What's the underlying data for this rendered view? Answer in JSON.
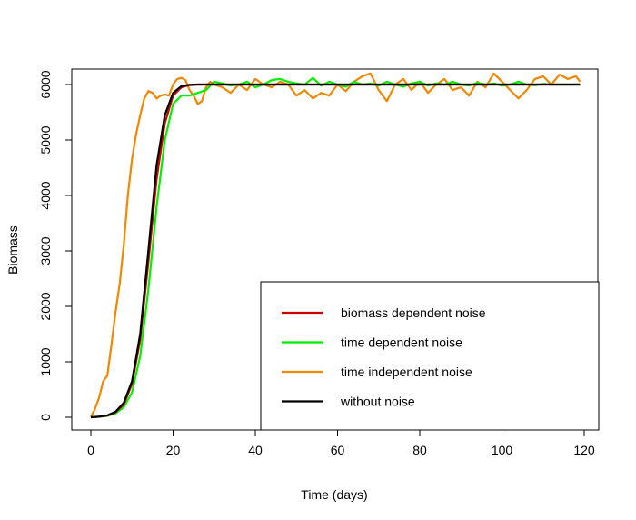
{
  "chart_data": {
    "type": "line",
    "title": "",
    "xlabel": "Time (days)",
    "ylabel": "Biomass",
    "xlim": [
      0,
      120
    ],
    "ylim": [
      0,
      6000
    ],
    "x_ticks": [
      0,
      20,
      40,
      60,
      80,
      100,
      120
    ],
    "y_ticks": [
      0,
      1000,
      2000,
      3000,
      4000,
      5000,
      6000
    ],
    "grid": false,
    "legend_position": "bottom-right",
    "series": [
      {
        "name": "biomass dependent noise",
        "color": "#cc0000",
        "x": [
          0,
          2,
          4,
          6,
          8,
          10,
          12,
          14,
          16,
          18,
          20,
          22,
          24,
          26,
          28,
          30,
          35,
          40,
          50,
          60,
          70,
          80,
          90,
          100,
          110,
          119
        ],
        "y": [
          0,
          10,
          30,
          90,
          230,
          600,
          1400,
          2800,
          4300,
          5300,
          5800,
          5950,
          5990,
          6000,
          6000,
          6000,
          6000,
          6000,
          6000,
          6000,
          6000,
          6000,
          6000,
          6000,
          6000,
          6000
        ]
      },
      {
        "name": "time dependent noise",
        "color": "#00ee00",
        "x": [
          0,
          2,
          4,
          6,
          8,
          10,
          12,
          14,
          16,
          18,
          20,
          22,
          24,
          26,
          28,
          30,
          32,
          34,
          36,
          38,
          40,
          42,
          44,
          46,
          48,
          50,
          52,
          54,
          56,
          58,
          60,
          62,
          64,
          66,
          68,
          70,
          72,
          74,
          76,
          78,
          80,
          82,
          84,
          86,
          88,
          90,
          92,
          94,
          96,
          98,
          100,
          102,
          104,
          106,
          108,
          110,
          112,
          114,
          116,
          119
        ],
        "y": [
          0,
          10,
          25,
          70,
          180,
          450,
          1100,
          2300,
          3800,
          5000,
          5650,
          5800,
          5800,
          5850,
          5900,
          6050,
          6020,
          5980,
          6000,
          6050,
          5950,
          6000,
          6080,
          6100,
          6050,
          6020,
          6000,
          6120,
          5980,
          6050,
          6000,
          5960,
          6050,
          6000,
          6020,
          5980,
          6050,
          6000,
          5960,
          6020,
          6050,
          5980,
          6020,
          6000,
          6050,
          6000,
          5980,
          6030,
          6000,
          6020,
          5980,
          6000,
          6050,
          6000,
          5990,
          6010,
          6000,
          6000,
          6000,
          6000
        ]
      },
      {
        "name": "time independent noise",
        "color": "#ee8800",
        "x": [
          0,
          1,
          2,
          3,
          4,
          5,
          6,
          7,
          8,
          9,
          10,
          11,
          12,
          13,
          14,
          15,
          16,
          17,
          18,
          19,
          20,
          21,
          22,
          23,
          24,
          25,
          26,
          27,
          28,
          29,
          30,
          32,
          34,
          36,
          38,
          40,
          42,
          44,
          46,
          48,
          50,
          52,
          54,
          56,
          58,
          60,
          62,
          64,
          66,
          68,
          70,
          72,
          74,
          76,
          78,
          80,
          82,
          84,
          86,
          88,
          90,
          92,
          94,
          96,
          98,
          100,
          102,
          104,
          106,
          108,
          110,
          112,
          114,
          116,
          118,
          119
        ],
        "y": [
          0,
          150,
          350,
          650,
          750,
          1300,
          1900,
          2400,
          3100,
          4000,
          4650,
          5100,
          5450,
          5750,
          5880,
          5850,
          5750,
          5800,
          5820,
          5800,
          6000,
          6100,
          6120,
          6080,
          5900,
          5800,
          5650,
          5700,
          5950,
          6050,
          6000,
          5950,
          5850,
          6000,
          5900,
          6100,
          6000,
          5950,
          6050,
          6000,
          5800,
          5900,
          5750,
          5850,
          5800,
          6000,
          5880,
          6050,
          6150,
          6200,
          5900,
          5700,
          6000,
          6100,
          5900,
          6050,
          5850,
          6000,
          6100,
          5900,
          5950,
          5800,
          6050,
          5950,
          6200,
          6050,
          5900,
          5750,
          5900,
          6100,
          6150,
          6000,
          6180,
          6100,
          6150,
          6050
        ]
      },
      {
        "name": "without noise",
        "color": "#000000",
        "x": [
          0,
          2,
          4,
          6,
          8,
          10,
          12,
          14,
          16,
          18,
          20,
          22,
          24,
          26,
          28,
          30,
          35,
          40,
          50,
          60,
          70,
          80,
          90,
          100,
          110,
          119
        ],
        "y": [
          0,
          12,
          35,
          100,
          260,
          650,
          1500,
          3000,
          4550,
          5450,
          5850,
          5970,
          5995,
          6000,
          6000,
          6000,
          6000,
          6000,
          6000,
          6000,
          6000,
          6000,
          6000,
          6000,
          6000,
          6000
        ]
      }
    ]
  }
}
